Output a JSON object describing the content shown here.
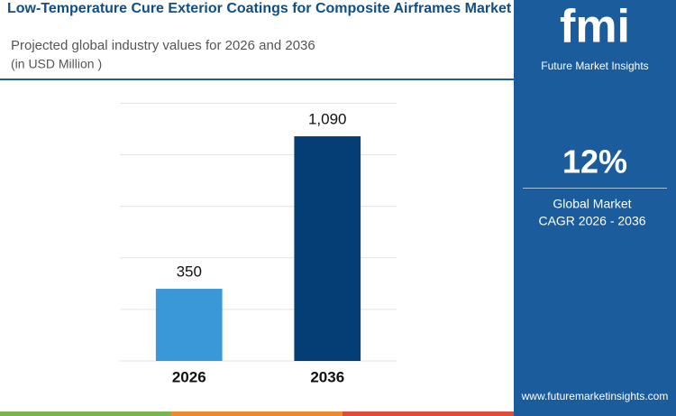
{
  "header": {
    "title": "Low-Temperature Cure Exterior Coatings for Composite Airframes Market",
    "subtitle": "Projected global industry values for 2026 and 2036",
    "unit": "(in USD Million )"
  },
  "chart_data": {
    "type": "bar",
    "categories": [
      "2026",
      "2036"
    ],
    "values": [
      350,
      1090
    ],
    "value_labels": [
      "350",
      "1,090"
    ],
    "colors": [
      "#3a97d8",
      "#053d75"
    ],
    "ylim": [
      0,
      1250
    ],
    "yticks": [
      0,
      250,
      500,
      750,
      1000,
      1250
    ],
    "grid": true,
    "tick_labels": false
  },
  "side_panel": {
    "logo": "fmi",
    "brand": "Future Market Insights",
    "cagr": "12%",
    "cagr_label_1": "Global Market",
    "cagr_label_2": "CAGR 2026 - 2036",
    "url": "www.futuremarketinsights.com"
  }
}
